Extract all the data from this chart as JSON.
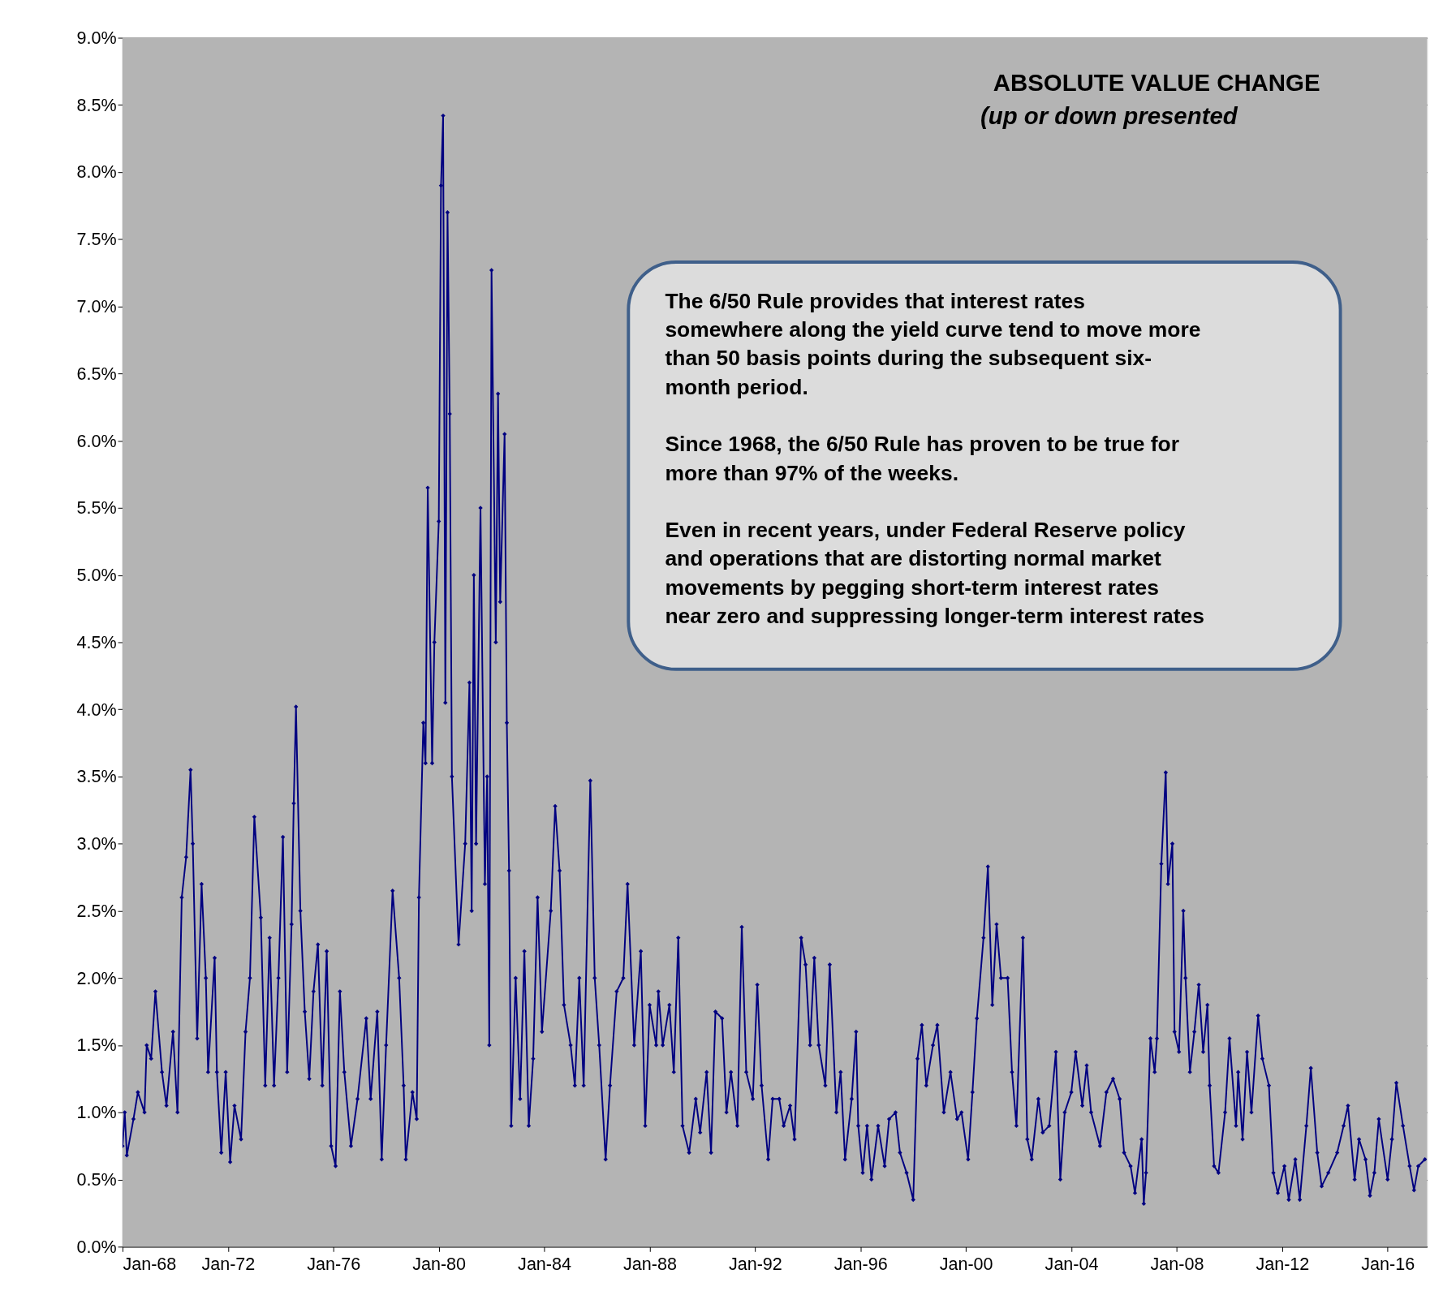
{
  "chart_data": {
    "type": "line",
    "title": "ABSOLUTE  VALUE  CHANGE",
    "subtitle": "(up or down presented",
    "annotations": [
      "The 6/50 Rule provides that interest rates\nsomewhere along the yield curve tend to move more\nthan 50 basis points during the subsequent six-\nmonth period.\n\nSince 1968, the 6/50 Rule has proven to be true for\nmore than 97% of the weeks.\n\nEven in recent years, under Federal Reserve policy\nand operations that are distorting normal market\nmovements by pegging short-term interest rates\nnear zero and suppressing longer-term interest rates"
    ],
    "x": [
      "1968-01",
      "1968-02",
      "1968-03",
      "1968-06",
      "1968-08",
      "1968-11",
      "1968-12",
      "1969-02",
      "1969-04",
      "1969-07",
      "1969-09",
      "1969-12",
      "1970-02",
      "1970-04",
      "1970-06",
      "1970-08",
      "1970-09",
      "1970-11",
      "1971-01",
      "1971-03",
      "1971-04",
      "1971-07",
      "1971-08",
      "1971-10",
      "1971-12",
      "1972-02",
      "1972-04",
      "1972-07",
      "1972-09",
      "1972-11",
      "1973-01",
      "1973-04",
      "1973-06",
      "1973-08",
      "1973-10",
      "1973-12",
      "1974-02",
      "1974-04",
      "1974-06",
      "1974-07",
      "1974-08",
      "1974-10",
      "1974-12",
      "1975-02",
      "1975-04",
      "1975-06",
      "1975-08",
      "1975-10",
      "1975-12",
      "1976-02",
      "1976-04",
      "1976-06",
      "1976-09",
      "1976-12",
      "1977-04",
      "1977-06",
      "1977-09",
      "1977-11",
      "1978-01",
      "1978-04",
      "1978-07",
      "1978-09",
      "1978-10",
      "1979-01",
      "1979-03",
      "1979-04",
      "1979-06",
      "1979-07",
      "1979-08",
      "1979-10",
      "1979-11",
      "1980-01",
      "1980-02",
      "1980-03",
      "1980-04",
      "1980-05",
      "1980-06",
      "1980-07",
      "1980-10",
      "1981-01",
      "1981-03",
      "1981-04",
      "1981-05",
      "1981-06",
      "1981-08",
      "1981-10",
      "1981-11",
      "1981-12",
      "1982-01",
      "1982-03",
      "1982-04",
      "1982-05",
      "1982-07",
      "1982-08",
      "1982-09",
      "1982-10",
      "1982-12",
      "1983-02",
      "1983-04",
      "1983-06",
      "1983-08",
      "1983-10",
      "1983-12",
      "1984-04",
      "1984-06",
      "1984-08",
      "1984-10",
      "1985-01",
      "1985-03",
      "1985-05",
      "1985-07",
      "1985-10",
      "1985-12",
      "1986-02",
      "1986-05",
      "1986-07",
      "1986-10",
      "1987-01",
      "1987-03",
      "1987-06",
      "1987-09",
      "1987-11",
      "1988-01",
      "1988-04",
      "1988-05",
      "1988-07",
      "1988-10",
      "1988-12",
      "1989-02",
      "1989-04",
      "1989-07",
      "1989-10",
      "1989-12",
      "1990-03",
      "1990-05",
      "1990-07",
      "1990-10",
      "1990-12",
      "1991-02",
      "1991-05",
      "1991-07",
      "1991-09",
      "1991-12",
      "1992-02",
      "1992-04",
      "1992-07",
      "1992-09",
      "1992-12",
      "1993-02",
      "1993-05",
      "1993-07",
      "1993-10",
      "1993-12",
      "1994-02",
      "1994-04",
      "1994-06",
      "1994-09",
      "1994-11",
      "1995-02",
      "1995-04",
      "1995-06",
      "1995-09",
      "1995-11",
      "1995-12",
      "1996-02",
      "1996-04",
      "1996-06",
      "1996-09",
      "1996-12",
      "1997-02",
      "1997-05",
      "1997-07",
      "1997-10",
      "1998-01",
      "1998-03",
      "1998-05",
      "1998-07",
      "1998-10",
      "1998-12",
      "1999-03",
      "1999-06",
      "1999-09",
      "1999-11",
      "2000-02",
      "2000-04",
      "2000-06",
      "2000-09",
      "2000-11",
      "2001-01",
      "2001-03",
      "2001-05",
      "2001-08",
      "2001-10",
      "2001-12",
      "2002-03",
      "2002-05",
      "2002-07",
      "2002-10",
      "2002-12",
      "2003-03",
      "2003-06",
      "2003-08",
      "2003-10",
      "2004-01",
      "2004-03",
      "2004-06",
      "2004-08",
      "2004-10",
      "2005-02",
      "2005-05",
      "2005-08",
      "2005-11",
      "2006-01",
      "2006-04",
      "2006-06",
      "2006-09",
      "2006-10",
      "2006-11",
      "2007-01",
      "2007-03",
      "2007-04",
      "2007-06",
      "2007-08",
      "2007-09",
      "2007-11",
      "2007-12",
      "2008-02",
      "2008-04",
      "2008-05",
      "2008-07",
      "2008-09",
      "2008-11",
      "2009-01",
      "2009-03",
      "2009-04",
      "2009-06",
      "2009-08",
      "2009-11",
      "2010-01",
      "2010-04",
      "2010-05",
      "2010-07",
      "2010-09",
      "2010-11",
      "2011-02",
      "2011-04",
      "2011-07",
      "2011-09",
      "2011-11",
      "2012-02",
      "2012-04",
      "2012-07",
      "2012-09",
      "2012-12",
      "2013-02",
      "2013-05",
      "2013-07",
      "2013-10",
      "2014-02",
      "2014-05",
      "2014-07",
      "2014-10",
      "2014-12",
      "2015-03",
      "2015-05",
      "2015-07",
      "2015-09",
      "2016-01",
      "2016-03",
      "2016-05",
      "2016-08",
      "2016-11",
      "2017-01",
      "2017-03",
      "2017-06"
    ],
    "series": [
      {
        "color": "#000080",
        "values": [
          0.75,
          1.0,
          0.68,
          0.95,
          1.15,
          1.0,
          1.5,
          1.4,
          1.9,
          1.3,
          1.05,
          1.6,
          1.0,
          2.6,
          2.9,
          3.55,
          3.0,
          1.55,
          2.7,
          2.0,
          1.3,
          2.15,
          1.3,
          0.7,
          1.3,
          0.63,
          1.05,
          0.8,
          1.6,
          2.0,
          3.2,
          2.45,
          1.2,
          2.3,
          1.2,
          2.0,
          3.05,
          1.3,
          2.4,
          3.3,
          4.02,
          2.5,
          1.75,
          1.25,
          1.9,
          2.25,
          1.2,
          2.2,
          0.75,
          0.6,
          1.9,
          1.3,
          0.75,
          1.1,
          1.7,
          1.1,
          1.75,
          0.65,
          1.5,
          2.65,
          2.0,
          1.2,
          0.65,
          1.15,
          0.95,
          2.6,
          3.9,
          3.6,
          5.65,
          3.6,
          4.5,
          5.4,
          7.9,
          8.42,
          4.05,
          7.7,
          6.2,
          3.5,
          2.25,
          3.0,
          4.2,
          2.5,
          5.0,
          3.0,
          5.5,
          2.7,
          3.5,
          1.5,
          7.27,
          4.5,
          6.35,
          4.8,
          6.05,
          3.9,
          2.8,
          0.9,
          2.0,
          1.1,
          2.2,
          0.9,
          1.4,
          2.6,
          1.6,
          2.5,
          3.28,
          2.8,
          1.8,
          1.5,
          1.2,
          2.0,
          1.2,
          3.47,
          2.0,
          1.5,
          0.65,
          1.2,
          1.9,
          2.0,
          2.7,
          1.5,
          2.2,
          0.9,
          1.8,
          1.5,
          1.9,
          1.5,
          1.8,
          1.3,
          2.3,
          0.9,
          0.7,
          1.1,
          0.85,
          1.3,
          0.7,
          1.75,
          1.7,
          1.0,
          1.3,
          0.9,
          2.38,
          1.3,
          1.1,
          1.95,
          1.2,
          0.65,
          1.1,
          1.1,
          0.9,
          1.05,
          0.8,
          2.3,
          2.1,
          1.5,
          2.15,
          1.5,
          1.2,
          2.1,
          1.0,
          1.3,
          0.65,
          1.1,
          1.6,
          0.9,
          0.55,
          0.9,
          0.5,
          0.9,
          0.6,
          0.95,
          1.0,
          0.7,
          0.55,
          0.35,
          1.4,
          1.65,
          1.2,
          1.5,
          1.65,
          1.0,
          1.3,
          0.95,
          1.0,
          0.65,
          1.15,
          1.7,
          2.3,
          2.83,
          1.8,
          2.4,
          2.0,
          2.0,
          1.3,
          0.9,
          2.3,
          0.8,
          0.65,
          1.1,
          0.85,
          0.9,
          1.45,
          0.5,
          1.0,
          1.15,
          1.45,
          1.05,
          1.35,
          1.0,
          0.75,
          1.15,
          1.25,
          1.1,
          0.7,
          0.6,
          0.4,
          0.8,
          0.32,
          0.55,
          1.55,
          1.3,
          1.55,
          2.85,
          3.53,
          2.7,
          3.0,
          1.6,
          1.45,
          2.5,
          2.0,
          1.3,
          1.6,
          1.95,
          1.45,
          1.8,
          1.2,
          0.6,
          0.55,
          1.0,
          1.55,
          0.9,
          1.3,
          0.8,
          1.45,
          1.0,
          1.72,
          1.4,
          1.2,
          0.55,
          0.4,
          0.6,
          0.35,
          0.65,
          0.35,
          0.9,
          1.33,
          0.7,
          0.45,
          0.55,
          0.7,
          0.9,
          1.05,
          0.5,
          0.8,
          0.65,
          0.38,
          0.55,
          0.95,
          0.5,
          0.8,
          1.22,
          0.9,
          0.6,
          0.42,
          0.6,
          0.65
        ]
      }
    ],
    "xlim": [
      "1968-01",
      "2017-07"
    ],
    "xticks": [
      {
        "value": "1968-01",
        "label": "Jan-68"
      },
      {
        "value": "1972-01",
        "label": "Jan-72"
      },
      {
        "value": "1976-01",
        "label": "Jan-76"
      },
      {
        "value": "1980-01",
        "label": "Jan-80"
      },
      {
        "value": "1984-01",
        "label": "Jan-84"
      },
      {
        "value": "1988-01",
        "label": "Jan-88"
      },
      {
        "value": "1992-01",
        "label": "Jan-92"
      },
      {
        "value": "1996-01",
        "label": "Jan-96"
      },
      {
        "value": "2000-01",
        "label": "Jan-00"
      },
      {
        "value": "2004-01",
        "label": "Jan-04"
      },
      {
        "value": "2008-01",
        "label": "Jan-08"
      },
      {
        "value": "2012-01",
        "label": "Jan-12"
      },
      {
        "value": "2016-01",
        "label": "Jan-16"
      }
    ],
    "ylim": [
      0,
      9
    ],
    "yticks": [
      {
        "value": 0,
        "label": "0.0%"
      },
      {
        "value": 0.5,
        "label": "0.5%"
      },
      {
        "value": 1,
        "label": "1.0%"
      },
      {
        "value": 1.5,
        "label": "1.5%"
      },
      {
        "value": 2,
        "label": "2.0%"
      },
      {
        "value": 2.5,
        "label": "2.5%"
      },
      {
        "value": 3,
        "label": "3.0%"
      },
      {
        "value": 3.5,
        "label": "3.5%"
      },
      {
        "value": 4,
        "label": "4.0%"
      },
      {
        "value": 4.5,
        "label": "4.5%"
      },
      {
        "value": 5,
        "label": "5.0%"
      },
      {
        "value": 5.5,
        "label": "5.5%"
      },
      {
        "value": 6,
        "label": "6.0%"
      },
      {
        "value": 6.5,
        "label": "6.5%"
      },
      {
        "value": 7,
        "label": "7.0%"
      },
      {
        "value": 7.5,
        "label": "7.5%"
      },
      {
        "value": 8,
        "label": "8.0%"
      },
      {
        "value": 8.5,
        "label": "8.5%"
      },
      {
        "value": 9,
        "label": "9.0%"
      }
    ],
    "grid": "y",
    "marker": "diamond",
    "line_style": "solid"
  }
}
